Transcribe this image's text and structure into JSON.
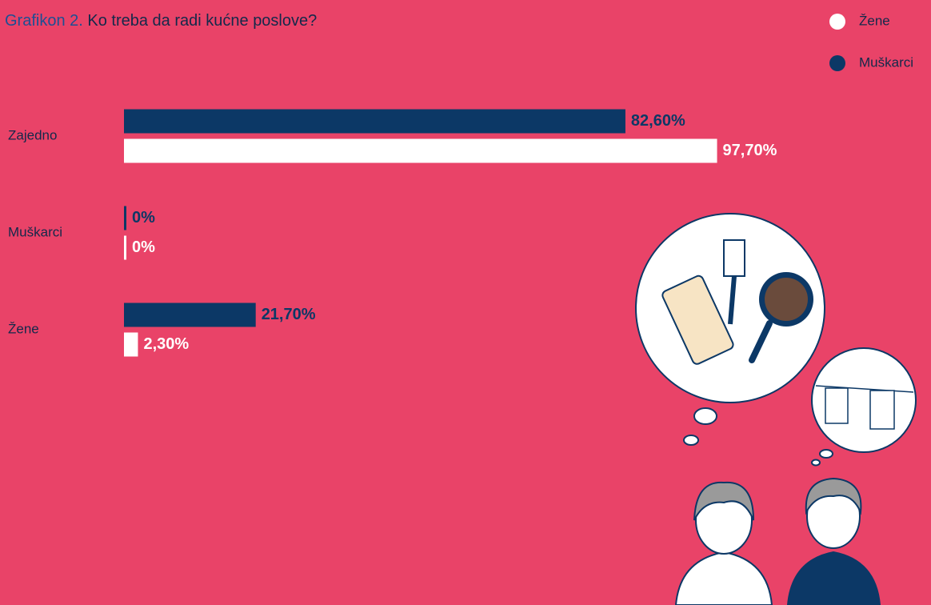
{
  "chart_data": {
    "type": "bar",
    "orientation": "horizontal",
    "title_label": "Grafikon 2.",
    "title": "Ko treba da radi kućne poslove?",
    "categories": [
      "Zajedno",
      "Muškarci",
      "Žene"
    ],
    "series": [
      {
        "name": "Žene",
        "color": "#ffffff",
        "label_color": "#ffffff",
        "values": [
          97.7,
          0,
          2.3
        ],
        "value_labels": [
          "97,70%",
          "0%",
          "2,30%"
        ]
      },
      {
        "name": "Muškarci",
        "color": "#0c3866",
        "label_color": "#0c3866",
        "values": [
          82.6,
          0,
          21.7
        ],
        "value_labels": [
          "82,60%",
          "0%",
          "21,70%"
        ]
      }
    ],
    "xlim": [
      0,
      100
    ],
    "legend": "top-right",
    "background": "#e94368"
  }
}
